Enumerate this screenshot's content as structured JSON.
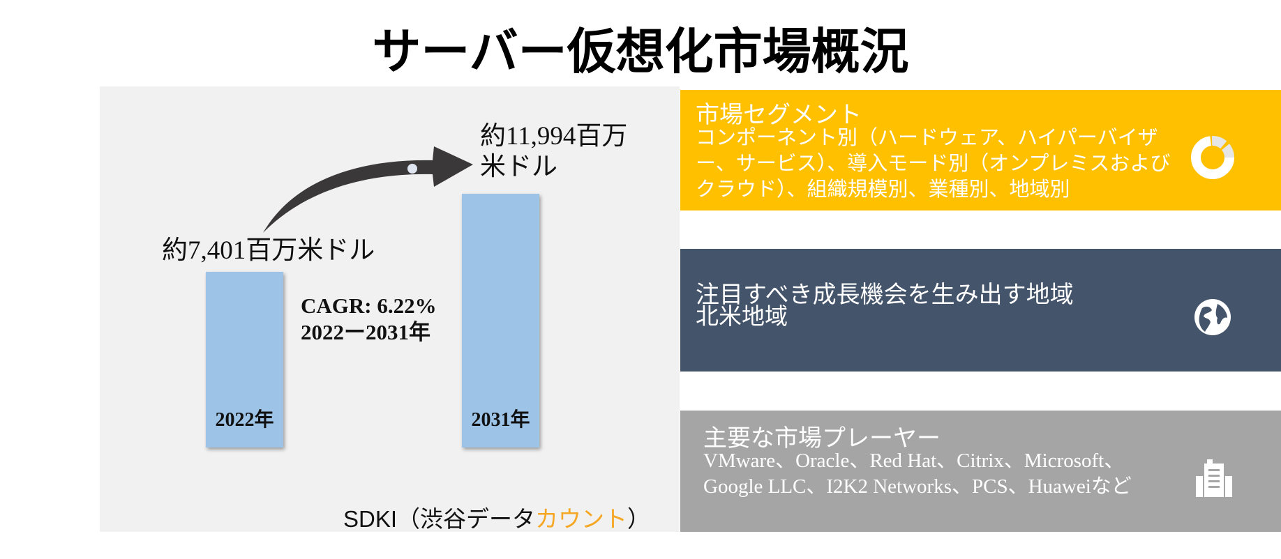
{
  "title": "サーバー仮想化市場概況",
  "chart_data": {
    "type": "bar",
    "categories": [
      "2022年",
      "2031年"
    ],
    "values": [
      7401,
      11994
    ],
    "value_labels": [
      "約7,401百万米ドル",
      "約11,994百万米ドル"
    ],
    "value_label_2031_lines": [
      "約11,994百万",
      "米ドル"
    ],
    "unit": "百万米ドル",
    "cagr_label": "CAGR: 6.22%",
    "period_label": "2022ー2031年"
  },
  "source": {
    "prefix": "SDKI（渋谷データ",
    "highlight": "カウント",
    "suffix": "）"
  },
  "segments": {
    "header": "市場セグメント",
    "body": "コンポーネント別（ハードウェア、ハイパーバイザー、サービス）、導入モード別（オンプレミスおよびクラウド）、組織規模別、業種別、地域別",
    "color": "#ffc000",
    "icon": "donut-chart-icon"
  },
  "region": {
    "header": "注目すべき成長機会を生み出す地域",
    "body": "北米地域",
    "color": "#44546a",
    "icon": "globe-icon"
  },
  "players": {
    "header": "主要な市場プレーヤー",
    "body": "VMware、Oracle、Red Hat、Citrix、Microsoft、Google LLC、I2K2 Networks、PCS、Huaweiなど",
    "color": "#a5a5a5",
    "icon": "building-icon"
  }
}
